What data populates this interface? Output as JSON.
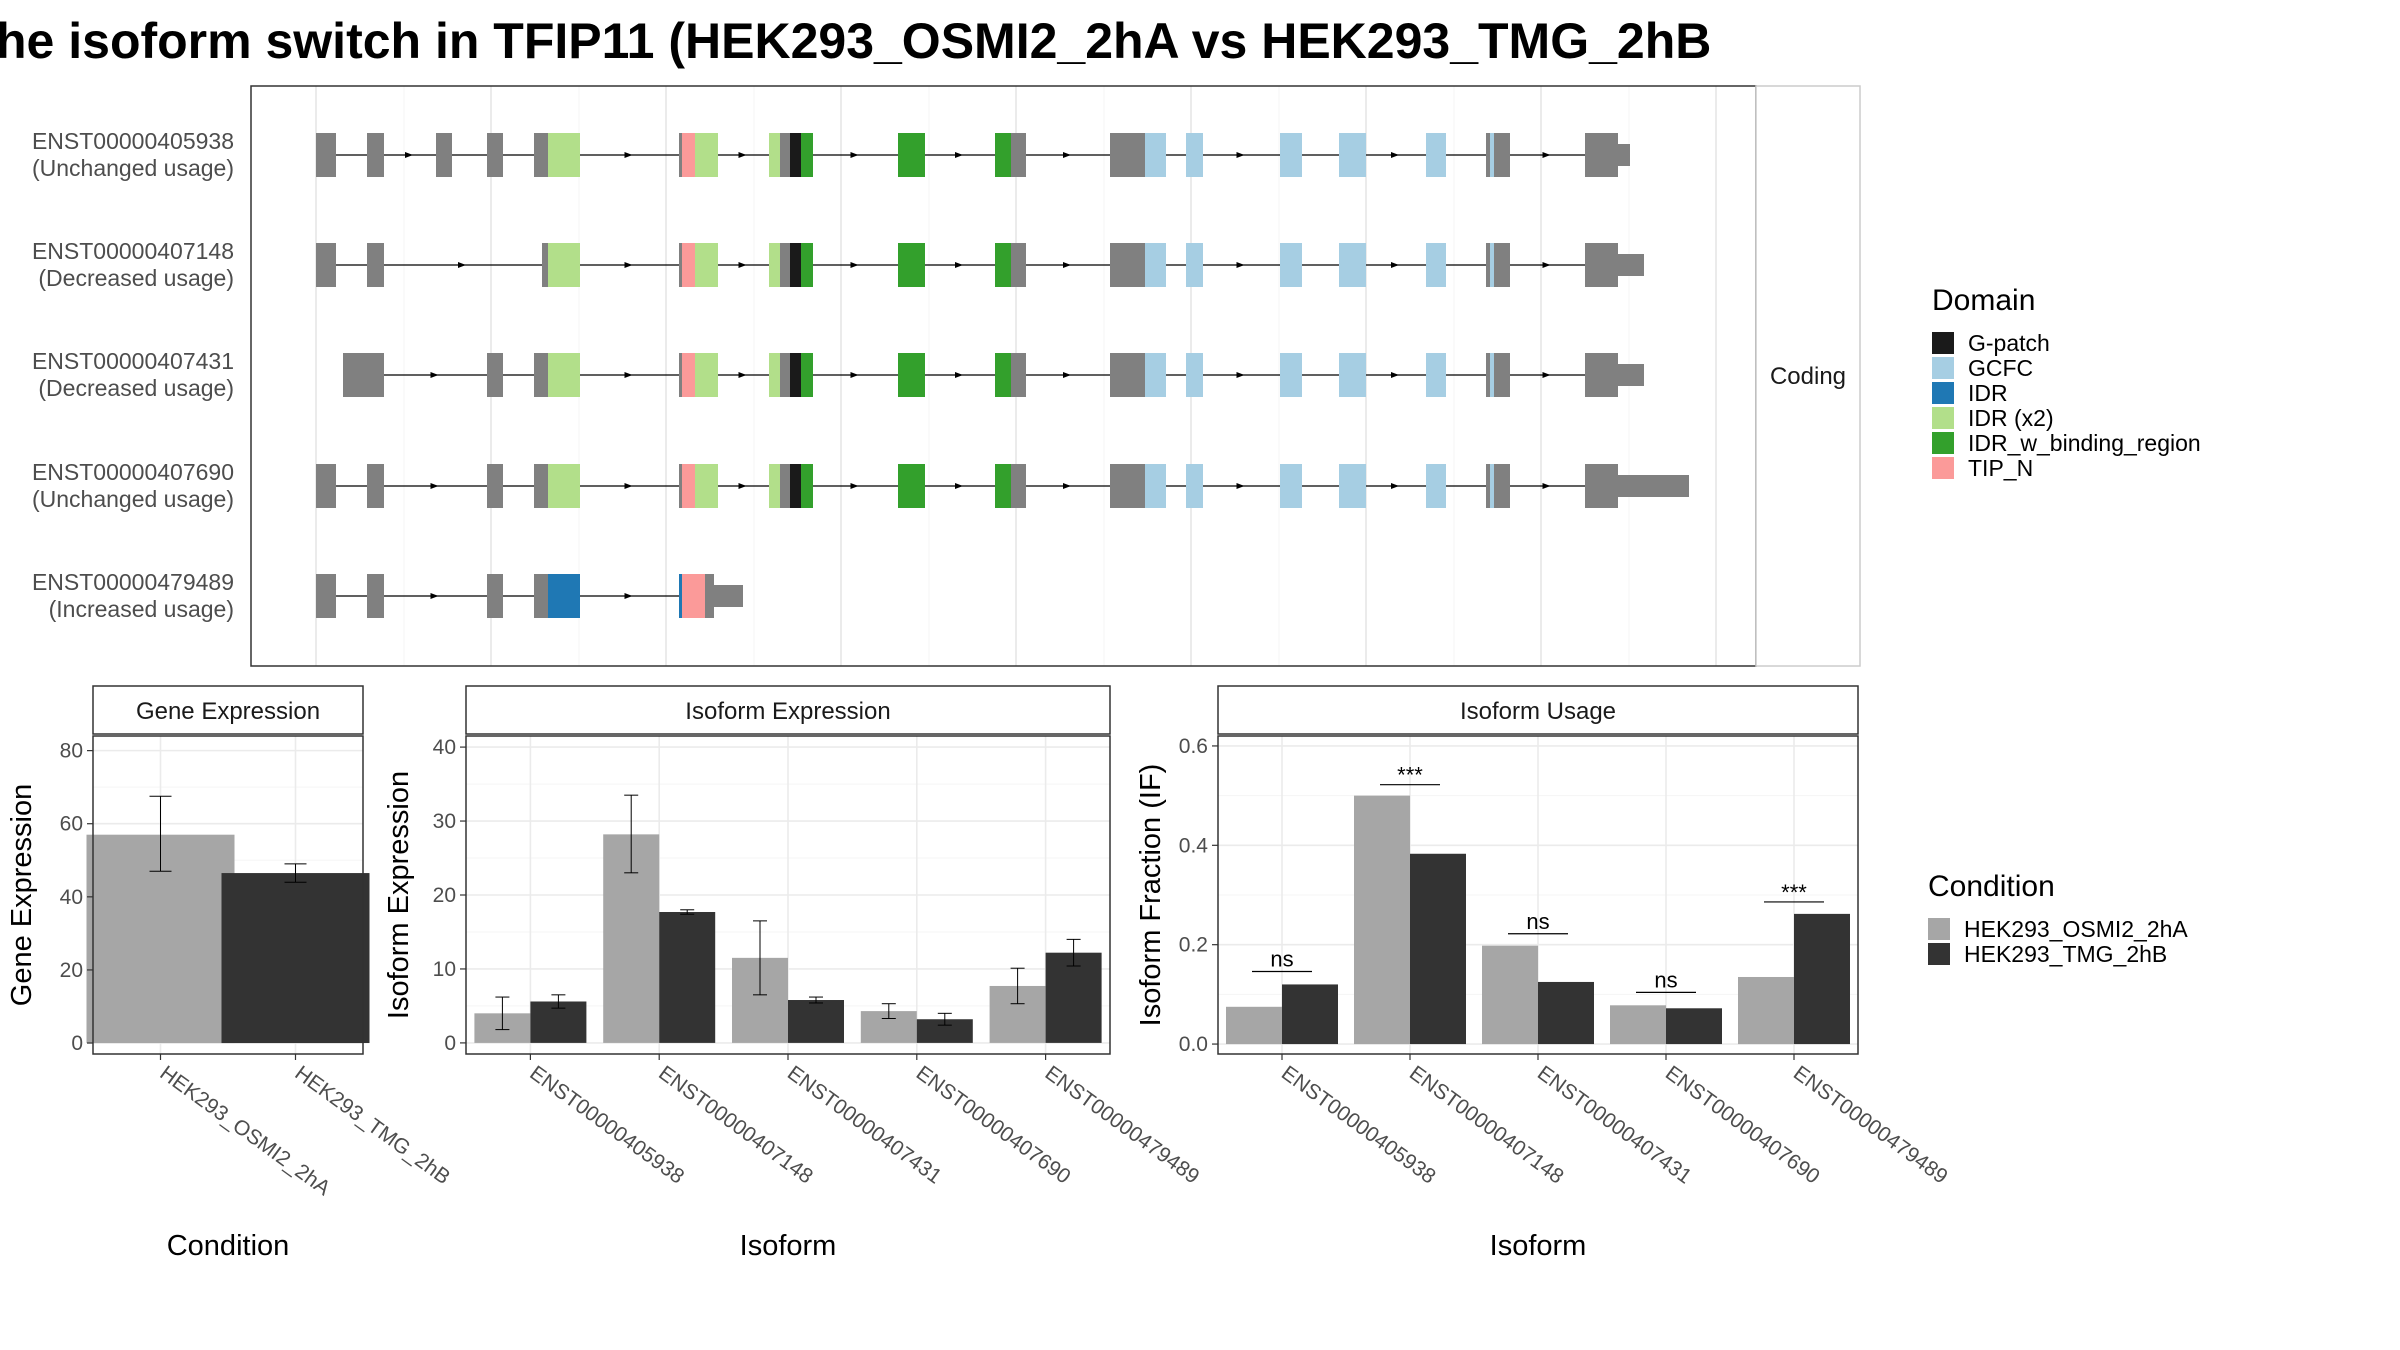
{
  "title": "he isoform switch in TFIP11 (HEK293_OSMI2_2hA vs HEK293_TMG_2hB",
  "colors": {
    "intron": "#000000",
    "exon": "#808080",
    "cond1": "#a6a6a6",
    "cond2": "#333333",
    "grid": "#ebebeb",
    "G-patch": "#1a1a1a",
    "GCFC": "#a6cee3",
    "IDR": "#1f78b4",
    "IDR (x2)": "#b2df8a",
    "IDR_w_binding_region": "#33a02c",
    "TIP_N": "#fb9a99"
  },
  "isoform_panel": {
    "side_strip": "Coding",
    "isoforms": [
      {
        "id": "ENST00000405938",
        "usage": "(Unchanged usage)"
      },
      {
        "id": "ENST00000407148",
        "usage": "(Decreased usage)"
      },
      {
        "id": "ENST00000407431",
        "usage": "(Decreased usage)"
      },
      {
        "id": "ENST00000407690",
        "usage": "(Unchanged usage)"
      },
      {
        "id": "ENST00000479489",
        "usage": "(Increased usage)"
      }
    ]
  },
  "domain_legend": {
    "title": "Domain",
    "items": [
      "G-patch",
      "GCFC",
      "IDR",
      "IDR (x2)",
      "IDR_w_binding_region",
      "TIP_N"
    ]
  },
  "condition_legend": {
    "title": "Condition",
    "items": [
      "HEK293_OSMI2_2hA",
      "HEK293_TMG_2hB"
    ]
  },
  "chart_data": [
    {
      "type": "bar",
      "title": "Gene Expression",
      "xlabel": "Condition",
      "ylabel": "Gene Expression",
      "categories": [
        "HEK293_OSMI2_2hA",
        "HEK293_TMG_2hB"
      ],
      "values": [
        57,
        46.5
      ],
      "errors": [
        [
          47,
          67.5
        ],
        [
          44,
          49
        ]
      ],
      "ylim": [
        -3,
        84
      ],
      "yticks": [
        0,
        20,
        40,
        60,
        80
      ]
    },
    {
      "type": "bar",
      "title": "Isoform Expression",
      "xlabel": "Isoform",
      "ylabel": "Isoform Expression",
      "categories": [
        "ENST00000405938",
        "ENST00000407148",
        "ENST00000407431",
        "ENST00000407690",
        "ENST00000479489"
      ],
      "series": [
        {
          "name": "HEK293_OSMI2_2hA",
          "values": [
            4,
            28.2,
            11.5,
            4.3,
            7.7
          ],
          "errors": [
            [
              1.8,
              6.2
            ],
            [
              23,
              33.5
            ],
            [
              6.5,
              16.5
            ],
            [
              3.3,
              5.3
            ],
            [
              5.3,
              10.1
            ]
          ]
        },
        {
          "name": "HEK293_TMG_2hB",
          "values": [
            5.6,
            17.7,
            5.8,
            3.2,
            12.2
          ],
          "errors": [
            [
              4.7,
              6.5
            ],
            [
              17.4,
              18
            ],
            [
              5.4,
              6.2
            ],
            [
              2.4,
              4
            ],
            [
              10.4,
              14
            ]
          ]
        }
      ],
      "ylim": [
        -1.5,
        41.5
      ],
      "yticks": [
        0,
        10,
        20,
        30,
        40
      ]
    },
    {
      "type": "bar",
      "title": "Isoform Usage",
      "xlabel": "Isoform",
      "ylabel": "Isoform Fraction (IF)",
      "categories": [
        "ENST00000405938",
        "ENST00000407148",
        "ENST00000407431",
        "ENST00000407690",
        "ENST00000479489"
      ],
      "series": [
        {
          "name": "HEK293_OSMI2_2hA",
          "values": [
            0.075,
            0.5,
            0.198,
            0.078,
            0.135
          ]
        },
        {
          "name": "HEK293_TMG_2hB",
          "values": [
            0.12,
            0.383,
            0.125,
            0.072,
            0.262
          ]
        }
      ],
      "significance": [
        "ns",
        "***",
        "ns",
        "ns",
        "***"
      ],
      "sig_height": [
        0.146,
        0.522,
        0.222,
        0.104,
        0.286
      ],
      "ylim": [
        -0.02,
        0.62
      ],
      "yticks": [
        0.0,
        0.2,
        0.4,
        0.6
      ],
      "ytick_labels": [
        "0.0",
        "0.2",
        "0.4",
        "0.6"
      ]
    }
  ]
}
